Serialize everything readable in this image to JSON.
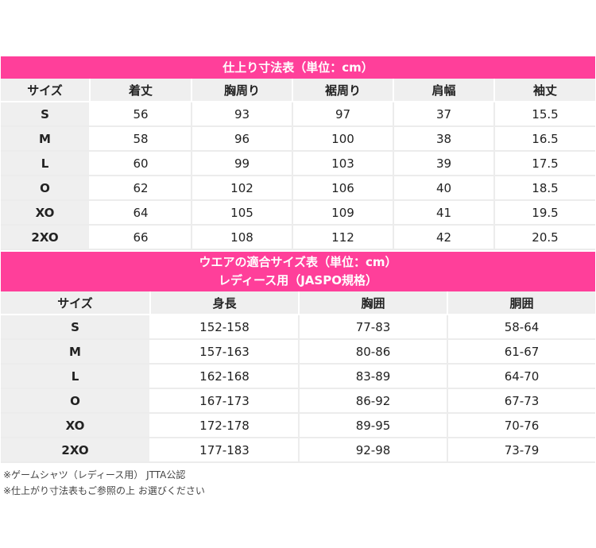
{
  "table1": {
    "title": "仕上り寸法表（単位：cm）",
    "headers": [
      "サイズ",
      "着丈",
      "胸周り",
      "裾周り",
      "肩幅",
      "袖丈"
    ],
    "rows": [
      [
        "S",
        "56",
        "93",
        "97",
        "37",
        "15.5"
      ],
      [
        "M",
        "58",
        "96",
        "100",
        "38",
        "16.5"
      ],
      [
        "L",
        "60",
        "99",
        "103",
        "39",
        "17.5"
      ],
      [
        "O",
        "62",
        "102",
        "106",
        "40",
        "18.5"
      ],
      [
        "XO",
        "64",
        "105",
        "109",
        "41",
        "19.5"
      ],
      [
        "2XO",
        "66",
        "108",
        "112",
        "42",
        "20.5"
      ]
    ]
  },
  "table2": {
    "title_line1": "ウエアの適合サイズ表（単位：cm）",
    "title_line2": "レディース用（JASPO規格）",
    "headers": [
      "サイズ",
      "身長",
      "胸囲",
      "胴囲"
    ],
    "rows": [
      [
        "S",
        "152-158",
        "77-83",
        "58-64"
      ],
      [
        "M",
        "157-163",
        "80-86",
        "61-67"
      ],
      [
        "L",
        "162-168",
        "83-89",
        "64-70"
      ],
      [
        "O",
        "167-173",
        "86-92",
        "67-73"
      ],
      [
        "XO",
        "172-178",
        "89-95",
        "70-76"
      ],
      [
        "2XO",
        "177-183",
        "92-98",
        "73-79"
      ]
    ]
  },
  "notes": [
    "※ゲームシャツ（レディース用） JTTA公認",
    "※仕上がり寸法表もご参照の上 お選びください"
  ],
  "colors": {
    "accent": "#ff3f9a",
    "header_bg": "#efefef"
  }
}
